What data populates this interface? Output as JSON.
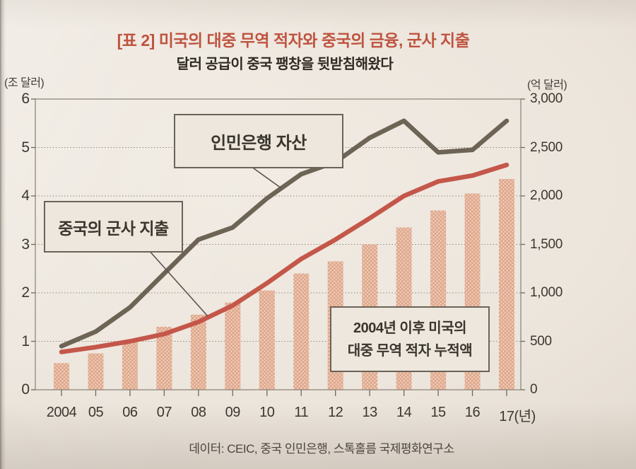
{
  "page": {
    "title": "[표 2] 미국의 대중 무역 적자와 중국의 금융, 군사 지출",
    "subtitle": "달러 공급이 중국 팽창을 뒷받침해왔다",
    "source": "데이터: CEIC, 중국 인민은행, 스톡홀름 국제평화연구소"
  },
  "callouts": {
    "pboc": {
      "label": "인민은행 자산"
    },
    "military": {
      "label": "중국의 군사 지출"
    },
    "deficit": {
      "line1": "2004년 이후 미국의",
      "line2": "대중 무역 적자 누적액"
    }
  },
  "chart_data": {
    "type": "combo-bar-line",
    "categories": [
      "2004",
      "05",
      "06",
      "07",
      "08",
      "09",
      "10",
      "11",
      "12",
      "13",
      "14",
      "15",
      "16",
      "17"
    ],
    "x_axis_suffix": "(년)",
    "left_axis": {
      "label": "(조 달러)",
      "min": 0,
      "max": 6,
      "step": 1,
      "ticks": [
        "0",
        "1",
        "2",
        "3",
        "4",
        "5",
        "6"
      ]
    },
    "right_axis": {
      "label": "(억 달러)",
      "min": 0,
      "max": 3000,
      "step": 500,
      "ticks": [
        "0",
        "500",
        "1,000",
        "1,500",
        "2,000",
        "2,500",
        "3,000"
      ]
    },
    "grid": "horizontal-dotted",
    "legend_position": "in-plot callout boxes",
    "series": [
      {
        "name": "2004년 이후 미국의 대중 무역 적자 누적액",
        "type": "bar",
        "axis": "left",
        "color": "#f1cdba",
        "hatch_color": "#dba285",
        "values": [
          0.55,
          0.75,
          1.0,
          1.3,
          1.55,
          1.8,
          2.05,
          2.4,
          2.65,
          3.0,
          3.35,
          3.7,
          4.05,
          4.35
        ]
      },
      {
        "name": "인민은행 자산",
        "type": "line",
        "axis": "left",
        "color": "#6d6456",
        "values": [
          0.9,
          1.2,
          1.7,
          2.4,
          3.1,
          3.35,
          3.95,
          4.45,
          4.7,
          5.2,
          5.55,
          4.9,
          4.95,
          5.55
        ]
      },
      {
        "name": "중국의 군사 지출",
        "type": "line",
        "axis": "right",
        "color": "#c4574a",
        "values": [
          390,
          440,
          500,
          575,
          700,
          870,
          1100,
          1350,
          1550,
          1770,
          2000,
          2150,
          2210,
          2320
        ]
      }
    ]
  }
}
